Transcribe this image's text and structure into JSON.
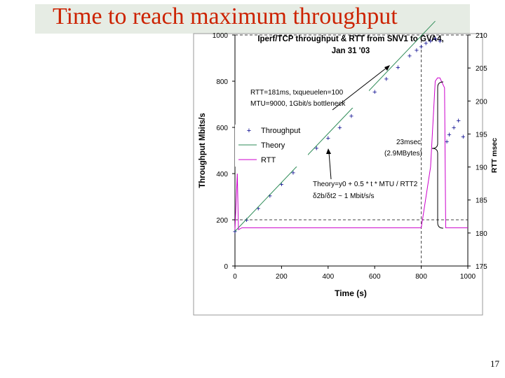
{
  "slide": {
    "title": "Time to reach maximum throughput",
    "page_number": "17"
  },
  "chart_data": {
    "type": "line",
    "title_lines": [
      "Iperf/TCP throughput  & RTT from SNV1 to GVA4,",
      "Jan 31 '03"
    ],
    "xlabel": "Time (s)",
    "ylabel": "Throughput Mbits/s",
    "y2label": "RTT msec",
    "xlim": [
      0,
      1000
    ],
    "ylim": [
      0,
      1000
    ],
    "y2lim": [
      175,
      210
    ],
    "xticks": [
      "0",
      "200",
      "400",
      "600",
      "800",
      "1000"
    ],
    "yticks": [
      "0",
      "200",
      "400",
      "600",
      "800",
      "1000"
    ],
    "y2ticks": [
      "175",
      "180",
      "185",
      "190",
      "195",
      "200",
      "205",
      "210"
    ],
    "grid": "dashed reference lines at y=200, y=1000 and x=800",
    "legend": {
      "placement": "middle-left",
      "entries": [
        "Throughput",
        "Theory",
        "RTT"
      ]
    },
    "series": [
      {
        "name": "Throughput",
        "marker": "+",
        "color": "#00008b",
        "x": [
          0,
          50,
          100,
          150,
          200,
          250,
          300,
          350,
          400,
          450,
          500,
          550,
          600,
          650,
          700,
          750,
          780,
          800,
          820,
          840,
          860,
          880,
          910,
          920,
          940,
          960,
          980
        ],
        "values": [
          150,
          200,
          250,
          305,
          355,
          405,
          455,
          510,
          555,
          600,
          650,
          705,
          755,
          810,
          860,
          910,
          935,
          950,
          965,
          975,
          985,
          975,
          540,
          570,
          600,
          630,
          560
        ]
      },
      {
        "name": "Theory",
        "color": "#2e8b57",
        "x": [
          0,
          860
        ],
        "values": [
          150,
          1060
        ]
      },
      {
        "name": "RTT",
        "color": "#cc00cc",
        "unit": "msec",
        "x": [
          0,
          10,
          15,
          30,
          200,
          300,
          440,
          650,
          780,
          800,
          840,
          860,
          870,
          880,
          900,
          905,
          920,
          940,
          960,
          1000
        ],
        "values": [
          180.5,
          189,
          180.5,
          180.8,
          180.8,
          180.8,
          180.8,
          180.8,
          180.8,
          180.8,
          190,
          203,
          203.5,
          203.5,
          202,
          180.8,
          180.8,
          180.8,
          180.8,
          180.8
        ]
      }
    ],
    "annotations": [
      {
        "lines": [
          "RTT=181ms, txqueuelen=100",
          "MTU=9000, 1Gbit/s bottleneck"
        ]
      },
      {
        "lines": [
          "23msec",
          "(2.9MBytes)"
        ]
      },
      {
        "lines": [
          "Theory=y0 + 0.5 * t * MTU / RTT2",
          "δ2b/δt2 ~ 1 Mbit/s/s"
        ]
      }
    ]
  }
}
